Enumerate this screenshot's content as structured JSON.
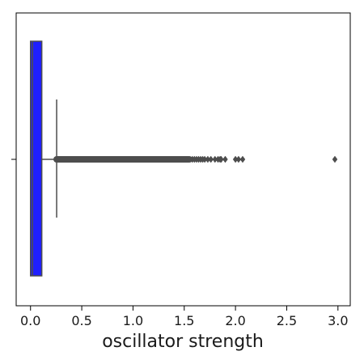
{
  "chart_data": {
    "type": "box",
    "orientation": "horizontal",
    "title": "",
    "xlabel": "oscillator strength",
    "ylabel": "",
    "xlim": [
      -0.14,
      3.12
    ],
    "x_ticks": [
      0.0,
      0.5,
      1.0,
      1.5,
      2.0,
      2.5,
      3.0
    ],
    "x_tick_labels": [
      "0.0",
      "0.5",
      "1.0",
      "1.5",
      "2.0",
      "2.5",
      "3.0"
    ],
    "grid": false,
    "legend": "none",
    "box": {
      "whisker_low": 0.0,
      "q1": 0.0,
      "median": 0.02,
      "q3": 0.11,
      "whisker_high": 0.255,
      "dense_outlier_range": [
        0.255,
        1.55
      ],
      "outliers": [
        1.58,
        1.6,
        1.62,
        1.64,
        1.66,
        1.68,
        1.7,
        1.73,
        1.76,
        1.8,
        1.83,
        1.85,
        1.86,
        1.9,
        2.0,
        2.03,
        2.07,
        2.97
      ],
      "fill_color": "#1f1fff",
      "edge_color": "#4d4d4d"
    }
  }
}
